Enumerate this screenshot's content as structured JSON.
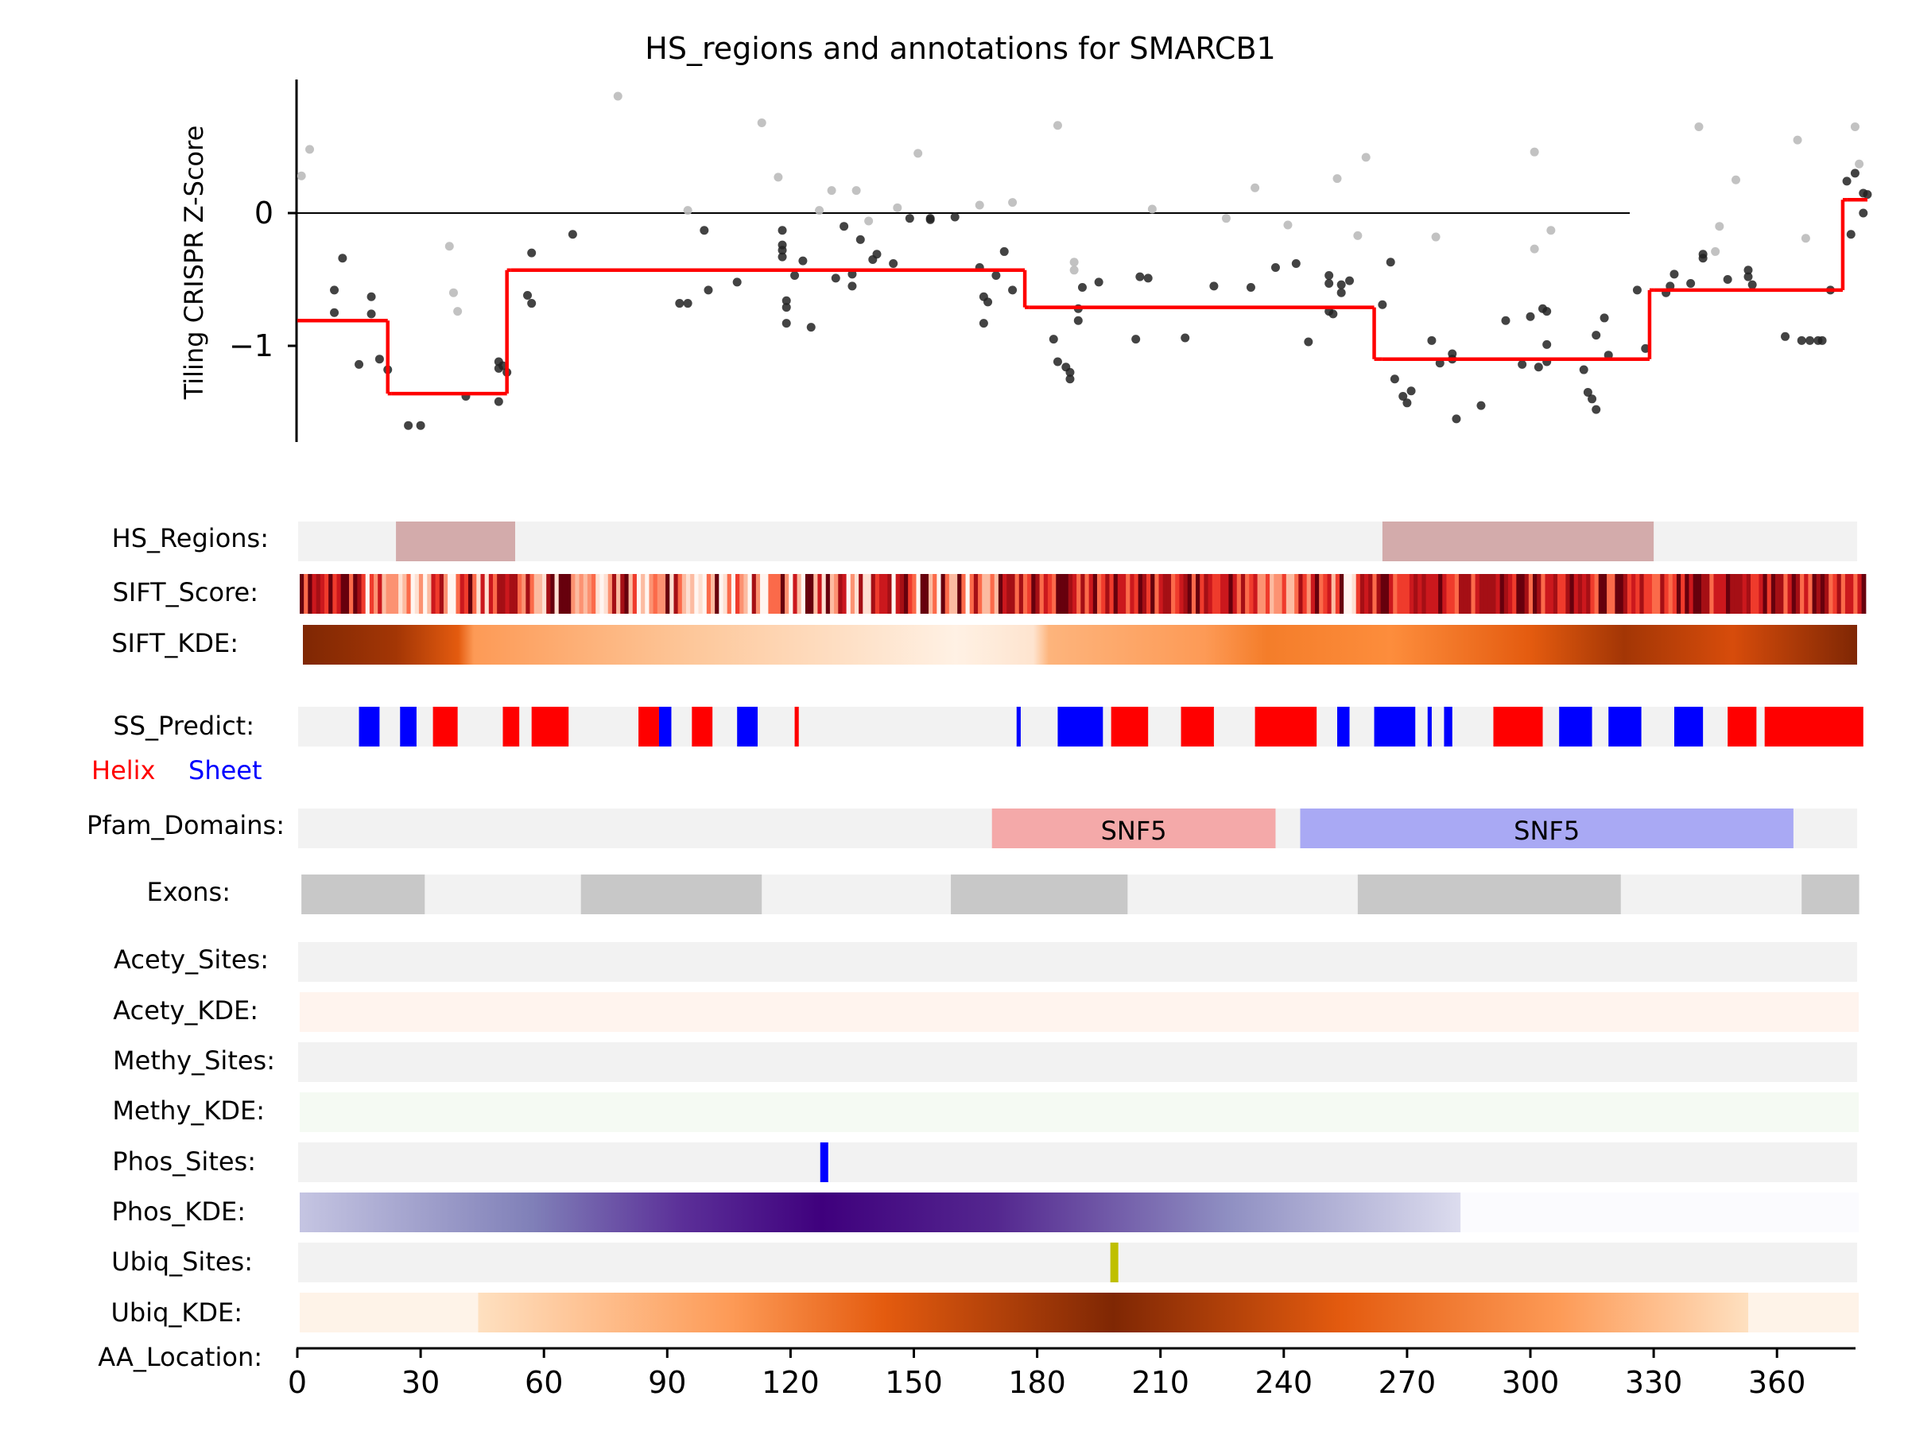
{
  "chart_data": {
    "type": "scatter",
    "title": "HS_regions and annotations for SMARCB1",
    "ylabel": "Tiling CRISPR Z-Score",
    "xlabel": "AA_Location:",
    "xlim": [
      0,
      380
    ],
    "ylim": [
      -1.75,
      1.0
    ],
    "yticks": [
      0,
      -1
    ],
    "xticks": [
      0,
      30,
      60,
      90,
      120,
      150,
      180,
      210,
      240,
      270,
      300,
      330,
      360
    ],
    "zero_line": true,
    "colors": {
      "points_primary": "#222222",
      "points_faded": "#bbbbbb",
      "segments": "#ff0000"
    },
    "points": [
      [
        1,
        0.28,
        1
      ],
      [
        3,
        0.48,
        1
      ],
      [
        9,
        -0.58,
        0
      ],
      [
        9,
        -0.75,
        0
      ],
      [
        11,
        -0.34,
        0
      ],
      [
        15,
        -1.14,
        0
      ],
      [
        18,
        -0.63,
        0
      ],
      [
        18,
        -0.76,
        0
      ],
      [
        20,
        -1.1,
        0
      ],
      [
        22,
        -1.18,
        0
      ],
      [
        27,
        -1.6,
        0
      ],
      [
        30,
        -1.6,
        0
      ],
      [
        37,
        -0.25,
        1
      ],
      [
        38,
        -0.6,
        1
      ],
      [
        39,
        -0.74,
        1
      ],
      [
        41,
        -1.38,
        0
      ],
      [
        49,
        -1.12,
        0
      ],
      [
        49,
        -1.17,
        0
      ],
      [
        49,
        -1.42,
        0
      ],
      [
        50,
        -1.15,
        0
      ],
      [
        51,
        -1.2,
        0
      ],
      [
        56,
        -0.62,
        0
      ],
      [
        57,
        -0.3,
        0
      ],
      [
        57,
        -0.68,
        0
      ],
      [
        67,
        -0.16,
        0
      ],
      [
        78,
        0.88,
        1
      ],
      [
        93,
        -0.68,
        0
      ],
      [
        95,
        -0.68,
        0
      ],
      [
        95,
        0.02,
        1
      ],
      [
        99,
        -0.13,
        0
      ],
      [
        100,
        -0.58,
        0
      ],
      [
        107,
        -0.52,
        0
      ],
      [
        113,
        0.68,
        1
      ],
      [
        117,
        0.27,
        1
      ],
      [
        118,
        -0.13,
        0
      ],
      [
        118,
        -0.24,
        0
      ],
      [
        118,
        -0.28,
        0
      ],
      [
        118,
        -0.33,
        0
      ],
      [
        119,
        -0.66,
        0
      ],
      [
        119,
        -0.71,
        0
      ],
      [
        119,
        -0.83,
        0
      ],
      [
        121,
        -0.47,
        0
      ],
      [
        123,
        -0.36,
        0
      ],
      [
        125,
        -0.86,
        0
      ],
      [
        127,
        0.02,
        1
      ],
      [
        130,
        0.17,
        1
      ],
      [
        131,
        -0.49,
        0
      ],
      [
        133,
        -0.1,
        0
      ],
      [
        135,
        -0.55,
        0
      ],
      [
        135,
        -0.46,
        0
      ],
      [
        136,
        0.17,
        1
      ],
      [
        137,
        -0.2,
        0
      ],
      [
        139,
        -0.06,
        1
      ],
      [
        140,
        -0.35,
        0
      ],
      [
        141,
        -0.31,
        0
      ],
      [
        145,
        -0.38,
        0
      ],
      [
        146,
        0.04,
        1
      ],
      [
        149,
        -0.04,
        0
      ],
      [
        151,
        0.45,
        1
      ],
      [
        154,
        -0.04,
        0
      ],
      [
        154,
        -0.05,
        0
      ],
      [
        160,
        -0.03,
        0
      ],
      [
        166,
        0.06,
        1
      ],
      [
        166,
        -0.41,
        0
      ],
      [
        167,
        -0.63,
        0
      ],
      [
        167,
        -0.83,
        0
      ],
      [
        168,
        -0.67,
        0
      ],
      [
        170,
        -0.47,
        0
      ],
      [
        172,
        -0.29,
        0
      ],
      [
        174,
        0.08,
        1
      ],
      [
        174,
        -0.58,
        0
      ],
      [
        185,
        0.66,
        1
      ],
      [
        184,
        -0.95,
        0
      ],
      [
        185,
        -1.12,
        0
      ],
      [
        187,
        -1.16,
        0
      ],
      [
        188,
        -1.2,
        0
      ],
      [
        188,
        -1.25,
        0
      ],
      [
        189,
        -0.37,
        1
      ],
      [
        189,
        -0.43,
        1
      ],
      [
        190,
        -0.72,
        0
      ],
      [
        190,
        -0.81,
        0
      ],
      [
        191,
        -0.56,
        0
      ],
      [
        195,
        -0.52,
        0
      ],
      [
        204,
        -0.95,
        0
      ],
      [
        205,
        -0.48,
        0
      ],
      [
        207,
        -0.49,
        0
      ],
      [
        208,
        0.03,
        1
      ],
      [
        216,
        -0.94,
        0
      ],
      [
        223,
        -0.55,
        0
      ],
      [
        226,
        -0.04,
        1
      ],
      [
        232,
        -0.56,
        0
      ],
      [
        233,
        0.19,
        1
      ],
      [
        238,
        -0.41,
        0
      ],
      [
        241,
        -0.09,
        1
      ],
      [
        243,
        -0.38,
        0
      ],
      [
        246,
        -0.97,
        0
      ],
      [
        251,
        -0.47,
        0
      ],
      [
        251,
        -0.53,
        0
      ],
      [
        251,
        -0.74,
        0
      ],
      [
        252,
        -0.76,
        0
      ],
      [
        253,
        0.26,
        1
      ],
      [
        254,
        -0.54,
        0
      ],
      [
        254,
        -0.6,
        0
      ],
      [
        256,
        -0.51,
        0
      ],
      [
        258,
        -0.17,
        1
      ],
      [
        260,
        0.42,
        1
      ],
      [
        264,
        -0.69,
        0
      ],
      [
        266,
        -0.37,
        0
      ],
      [
        267,
        -1.25,
        0
      ],
      [
        269,
        -1.38,
        0
      ],
      [
        270,
        -1.43,
        0
      ],
      [
        271,
        -1.34,
        0
      ],
      [
        276,
        -0.96,
        0
      ],
      [
        277,
        -0.18,
        1
      ],
      [
        278,
        -1.13,
        0
      ],
      [
        281,
        -1.06,
        0
      ],
      [
        281,
        -1.1,
        0
      ],
      [
        282,
        -1.55,
        0
      ],
      [
        288,
        -1.45,
        0
      ],
      [
        294,
        -0.81,
        0
      ],
      [
        298,
        -1.14,
        0
      ],
      [
        300,
        -0.78,
        0
      ],
      [
        301,
        0.46,
        1
      ],
      [
        301,
        -0.27,
        1
      ],
      [
        302,
        -1.16,
        0
      ],
      [
        303,
        -0.72,
        0
      ],
      [
        304,
        -0.74,
        0
      ],
      [
        304,
        -1.12,
        0
      ],
      [
        304,
        -0.99,
        0
      ],
      [
        305,
        -0.13,
        1
      ],
      [
        313,
        -1.18,
        0
      ],
      [
        314,
        -1.35,
        0
      ],
      [
        315,
        -1.4,
        0
      ],
      [
        316,
        -1.48,
        0
      ],
      [
        316,
        -0.92,
        0
      ],
      [
        318,
        -0.79,
        0
      ],
      [
        319,
        -1.07,
        0
      ],
      [
        326,
        -0.58,
        0
      ],
      [
        328,
        -1.02,
        0
      ],
      [
        333,
        -0.6,
        0
      ],
      [
        334,
        -0.55,
        0
      ],
      [
        335,
        -0.46,
        0
      ],
      [
        339,
        -0.53,
        0
      ],
      [
        341,
        0.65,
        1
      ],
      [
        342,
        -0.31,
        0
      ],
      [
        342,
        -0.34,
        0
      ],
      [
        345,
        -0.29,
        1
      ],
      [
        346,
        -0.1,
        1
      ],
      [
        348,
        -0.5,
        0
      ],
      [
        350,
        0.25,
        1
      ],
      [
        353,
        -0.43,
        0
      ],
      [
        353,
        -0.48,
        0
      ],
      [
        354,
        -0.54,
        0
      ],
      [
        362,
        -0.93,
        0
      ],
      [
        365,
        0.55,
        1
      ],
      [
        366,
        -0.96,
        0
      ],
      [
        367,
        -0.19,
        1
      ],
      [
        368,
        -0.96,
        0
      ],
      [
        370,
        -0.96,
        0
      ],
      [
        371,
        -0.96,
        0
      ],
      [
        373,
        -0.58,
        0
      ],
      [
        377,
        0.24,
        0
      ],
      [
        378,
        -0.16,
        0
      ],
      [
        379,
        0.65,
        1
      ],
      [
        379,
        0.3,
        0
      ],
      [
        380,
        0.37,
        1
      ],
      [
        381,
        0.15,
        0
      ],
      [
        381,
        0.0,
        0
      ],
      [
        382,
        0.14,
        0
      ]
    ],
    "segments": [
      [
        0,
        22,
        -0.81
      ],
      [
        22,
        23,
        -1.36
      ],
      [
        23,
        51,
        -1.36
      ],
      [
        51,
        52,
        -0.43
      ],
      [
        52,
        177,
        -0.43
      ],
      [
        177,
        178,
        -0.71
      ],
      [
        178,
        262,
        -0.71
      ],
      [
        262,
        264,
        -1.1
      ],
      [
        264,
        329,
        -1.1
      ],
      [
        329,
        330,
        -0.58
      ],
      [
        330,
        376,
        -0.58
      ],
      [
        376,
        377,
        0.1
      ],
      [
        377,
        382,
        0.1
      ]
    ],
    "tracks": {
      "hs_regions": {
        "label": "HS_Regions:",
        "color": "#d3abab",
        "ranges": [
          [
            24,
            53
          ],
          [
            264,
            330
          ]
        ]
      },
      "sift_score": {
        "label": "SIFT_Score:"
      },
      "sift_kde": {
        "label": "SIFT_KDE:"
      },
      "ss_predict": {
        "label": "SS_Predict:",
        "helix_label": "Helix",
        "sheet_label": "Sheet",
        "helix_color": "#ff0000",
        "sheet_color": "#0000ff",
        "helix": [
          [
            33,
            39
          ],
          [
            50,
            54
          ],
          [
            57,
            66
          ],
          [
            83,
            88
          ],
          [
            96,
            101
          ],
          [
            121,
            122
          ],
          [
            198,
            207
          ],
          [
            215,
            223
          ],
          [
            233,
            248
          ],
          [
            291,
            303
          ],
          [
            348,
            355
          ],
          [
            357,
            381
          ]
        ],
        "sheet": [
          [
            15,
            20
          ],
          [
            25,
            29
          ],
          [
            88,
            91
          ],
          [
            107,
            112
          ],
          [
            175,
            176
          ],
          [
            185,
            196
          ],
          [
            253,
            256
          ],
          [
            262,
            272
          ],
          [
            275,
            276
          ],
          [
            279,
            281
          ],
          [
            307,
            315
          ],
          [
            319,
            327
          ],
          [
            335,
            342
          ]
        ]
      },
      "pfam": {
        "label": "Pfam_Domains:",
        "domains": [
          {
            "name": "SNF5",
            "start": 169,
            "end": 238,
            "color": "#f4a9a9"
          },
          {
            "name": "SNF5",
            "start": 244,
            "end": 364,
            "color": "#a9a9f4"
          }
        ]
      },
      "exons": {
        "label": "Exons:",
        "color": "#c8c8c8",
        "ranges": [
          [
            1,
            31
          ],
          [
            69,
            113
          ],
          [
            159,
            202
          ],
          [
            258,
            322
          ],
          [
            366,
            380
          ]
        ]
      },
      "acety_sites": {
        "label": "Acety_Sites:",
        "sites": []
      },
      "acety_kde": {
        "label": "Acety_KDE:",
        "color": "#fff4ee"
      },
      "methy_sites": {
        "label": "Methy_Sites:",
        "sites": []
      },
      "methy_kde": {
        "label": "Methy_KDE:",
        "color": "#f5faf3"
      },
      "phos_sites": {
        "label": "Phos_Sites:",
        "color": "#0000ff",
        "sites": [
          128
        ]
      },
      "phos_kde": {
        "label": "Phos_KDE:",
        "end": 283
      },
      "ubiq_sites": {
        "label": "Ubiq_Sites:",
        "color": "#bfbf00",
        "sites": [
          198
        ]
      },
      "ubiq_kde": {
        "label": "Ubiq_KDE:",
        "start": 44,
        "end": 353
      }
    }
  }
}
